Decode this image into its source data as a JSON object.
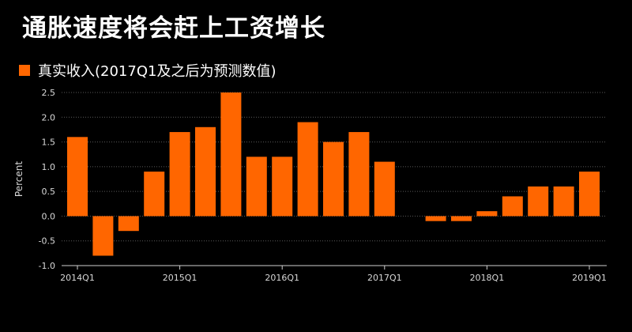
{
  "title": "通胀速度将会赶上工资增长",
  "colors": {
    "bar": "#ff6600",
    "background": "#000000",
    "grid": "#5a5a5a",
    "axis": "#cfcfcf",
    "text": "#ffffff"
  },
  "chart_data": {
    "type": "bar",
    "categories": [
      "2014Q1",
      "2014Q2",
      "2014Q3",
      "2014Q4",
      "2015Q1",
      "2015Q2",
      "2015Q3",
      "2015Q4",
      "2016Q1",
      "2016Q2",
      "2016Q3",
      "2016Q4",
      "2017Q1",
      "2017Q2",
      "2017Q3",
      "2017Q4",
      "2018Q1",
      "2018Q2",
      "2018Q3",
      "2018Q4",
      "2019Q1"
    ],
    "series": [
      {
        "name": "真实收入(2017Q1及之后为预测数值)",
        "values": [
          1.6,
          -0.8,
          -0.3,
          0.9,
          1.7,
          1.8,
          2.5,
          1.2,
          1.2,
          1.9,
          1.5,
          1.7,
          1.1,
          0.0,
          -0.1,
          -0.1,
          0.1,
          0.4,
          0.6,
          0.6,
          0.9
        ]
      }
    ],
    "xticks": [
      "2014Q1",
      "2015Q1",
      "2016Q1",
      "2017Q1",
      "2018Q1",
      "2019Q1"
    ],
    "yticks": [
      "2.5",
      "2.0",
      "1.5",
      "1.0",
      "0.5",
      "0.0",
      "-0.5",
      "-1.0"
    ],
    "ylabel": "Percent",
    "xlabel": "",
    "ylim": [
      -1.0,
      2.5
    ],
    "grid": true,
    "legend": "top-left"
  }
}
